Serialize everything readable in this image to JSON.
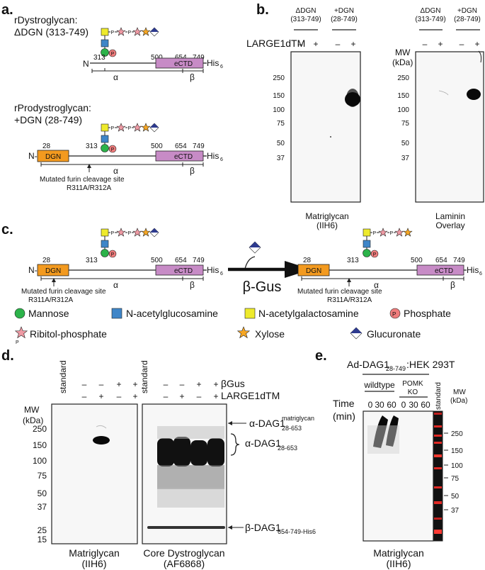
{
  "panel_labels": {
    "a": "a.",
    "b": "b.",
    "c": "c.",
    "d": "d.",
    "e": "e."
  },
  "panel_a": {
    "construct1_name": "rDystroglycan:",
    "construct1_range": "ΔDGN (313-749)",
    "construct2_name": "rProdystroglycan:",
    "construct2_range": "+DGN (28-749)",
    "n_term": "N",
    "n_term_dash": "N-",
    "his": "His",
    "his_sub": "6",
    "pos_28": "28",
    "pos_313": "313",
    "pos_500": "500",
    "pos_654": "654",
    "pos_749": "749",
    "dgn_label": "DGN",
    "ectd_label": "eCTD",
    "alpha": "α",
    "beta": "β",
    "furin_line1": "Mutated furin cleavage site",
    "furin_line2": "R311A/R312A",
    "p_letter": "P"
  },
  "panel_b": {
    "col_dDGN_1": "ΔDGN",
    "col_dDGN_2": "(313-749)",
    "col_pDGN_1": "+DGN",
    "col_pDGN_2": "(28-749)",
    "large_label": "LARGE1dTM",
    "minus": "–",
    "plus": "+",
    "mw_1": "MW",
    "mw_2": "(kDa)",
    "markers": [
      "250",
      "150",
      "100",
      "75",
      "50",
      "37"
    ],
    "blot1_cap1": "Matriglycan",
    "blot1_cap2": "(IIH6)",
    "blot2_cap1": "Laminin",
    "blot2_cap2": "Overlay"
  },
  "panel_c": {
    "enzyme": "β-Gus"
  },
  "legend": {
    "mannose": "Mannose",
    "glcnac": "N-acetylglucosamine",
    "galnac": "N-acetylgalactosamine",
    "phosphate": "Phosphate",
    "ribitol": "Ribitol-phosphate",
    "xylose": "Xylose",
    "glucuronate": "Glucuronate"
  },
  "panel_d": {
    "standard": "standard",
    "bgus": "βGus",
    "large": "LARGE1dTM",
    "mw_1": "MW",
    "mw_2": "(kDa)",
    "markers": [
      "250",
      "150",
      "100",
      "75",
      "50",
      "37",
      "25",
      "15"
    ],
    "ann1": "α-DAG1",
    "ann1_sup": "matriglycan",
    "ann1_sub": "28-653",
    "ann2": "α-DAG1",
    "ann2_sub": "28-653",
    "ann3": "β-DAG1",
    "ann3_sub": "654-749-His6",
    "cap1_1": "Matriglycan",
    "cap1_2": "(IIH6)",
    "cap2_1": "Core Dystroglycan",
    "cap2_2": "(AF6868)"
  },
  "panel_e": {
    "title": "Ad-DAG1",
    "title_sub": "28-749",
    "title_tail": ":HEK 293T",
    "wildtype": "wildtype",
    "pomk_1": "POMK",
    "pomk_2": "KO",
    "time_1": "Time",
    "time_2": "(min)",
    "times": [
      "0",
      "30",
      "60",
      "0",
      "30",
      "60"
    ],
    "standard": "standard",
    "mw_1": "MW",
    "mw_2": "(kDa)",
    "markers": [
      "250",
      "150",
      "100",
      "75",
      "50",
      "37"
    ],
    "cap1": "Matriglycan",
    "cap2": "(IIH6)"
  }
}
